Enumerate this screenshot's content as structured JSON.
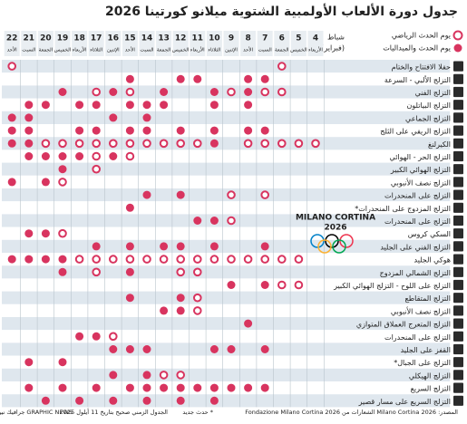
{
  "header": {
    "title": "جدول دورة الألعاب الأولمبية الشتوية ميلانو كورتينا 2026",
    "month": "شباط",
    "month_sub": "(فبراير)"
  },
  "legend": {
    "event": "يوم الحدث الرياضي",
    "medal": "يوم الحدث والميداليات"
  },
  "columns": {
    "days": [
      4,
      5,
      6,
      7,
      8,
      9,
      10,
      11,
      12,
      13,
      14,
      15,
      16,
      17,
      18,
      19,
      20,
      21,
      22
    ],
    "weekdays": [
      "الأربعاء",
      "الخميس",
      "الجمعة",
      "السبت",
      "الأحد",
      "الإثنين",
      "الثلاثاء",
      "الأربعاء",
      "الخميس",
      "الجمعة",
      "السبت",
      "الأحد",
      "الإثنين",
      "الثلاثاء",
      "الأربعاء",
      "الخميس",
      "الجمعة",
      "السبت",
      "الأحد"
    ]
  },
  "rows": [
    {
      "label": "حفلا الافتتاح والختام",
      "events": [
        6,
        22
      ]
    },
    {
      "label": "التزلج الألبي - السرعة",
      "medals": [
        7,
        8,
        11,
        12,
        15
      ]
    },
    {
      "label": "التزلج الفني",
      "events": [
        6,
        7,
        9,
        15,
        17
      ],
      "medals": [
        8,
        10,
        13,
        16,
        19
      ]
    },
    {
      "label": "التزلج البياتلون",
      "medals": [
        8,
        10,
        13,
        14,
        15,
        17,
        18,
        20,
        21
      ]
    },
    {
      "label": "التزلج الجماعي",
      "medals": [
        14,
        16,
        21,
        22
      ]
    },
    {
      "label": "التزلج الريفي على الثلج",
      "medals": [
        7,
        8,
        10,
        12,
        14,
        15,
        17,
        18,
        21,
        22
      ]
    },
    {
      "label": "الكيرلنغ",
      "events": [
        4,
        5,
        6,
        7,
        8,
        11,
        12,
        13,
        14,
        15,
        16,
        17,
        18,
        19,
        20
      ],
      "medals": [
        10,
        21,
        22
      ]
    },
    {
      "label": "التزلج الحر - الهوائي",
      "events": [
        15,
        17
      ],
      "medals": [
        16,
        18,
        19,
        20,
        21
      ]
    },
    {
      "label": "التزلج الهوائي الكبير",
      "events": [
        17
      ],
      "medals": [
        19
      ]
    },
    {
      "label": "التزلج نصف الأنبوبي",
      "events": [
        19
      ],
      "medals": [
        20,
        22
      ]
    },
    {
      "label": "التزلج على المنحدرات",
      "events": [
        7,
        9
      ],
      "medals": [
        12,
        14
      ]
    },
    {
      "label": "التزلج المزدوج على المنحدرات*",
      "medals": [
        15
      ]
    },
    {
      "label": "التزلج على المنحدرات",
      "events": [
        9
      ],
      "medals": [
        10,
        11
      ]
    },
    {
      "label": "السكي كروس",
      "events": [
        19
      ],
      "medals": [
        20,
        21
      ]
    },
    {
      "label": "التزلج الفني على الجليد",
      "medals": [
        7,
        10,
        12,
        13,
        15,
        17
      ]
    },
    {
      "label": "هوكي الجليد",
      "events": [
        5,
        6,
        7,
        8,
        9,
        10,
        11,
        12,
        13,
        14,
        15,
        16,
        17,
        18
      ],
      "medals": [
        19,
        20,
        21,
        22
      ]
    },
    {
      "label": "التزلج الشمالي المزدوج",
      "events": [
        11,
        12,
        17
      ],
      "medals": [
        15,
        19
      ]
    },
    {
      "label": "التزلج على اللوح - التزلج الهوائي الكبير",
      "events": [
        5,
        6
      ],
      "medals": [
        7,
        9
      ]
    },
    {
      "label": "التزلج المتقاطع",
      "events": [
        11
      ],
      "medals": [
        12,
        15
      ]
    },
    {
      "label": "التزلج نصف الأنبوبي",
      "events": [
        11
      ],
      "medals": [
        12,
        13
      ]
    },
    {
      "label": "التزلج المتعرج العملاق المتوازي",
      "medals": [
        8
      ]
    },
    {
      "label": "التزلج على المنحدرات",
      "events": [
        16
      ],
      "medals": [
        17,
        18
      ]
    },
    {
      "label": "القفز على الجليد",
      "medals": [
        7,
        9,
        10,
        14,
        15,
        16
      ]
    },
    {
      "label": "التزلج على الجبال*",
      "medals": [
        19,
        21
      ]
    },
    {
      "label": "التزلج الهيكلي",
      "events": [
        12,
        13
      ],
      "medals": [
        14,
        16
      ]
    },
    {
      "label": "التزلج السريع",
      "medals": [
        7,
        8,
        9,
        10,
        11,
        12,
        13,
        14,
        15,
        17,
        19,
        21
      ]
    },
    {
      "label": "التزلج السريع على مسار قصير",
      "medals": [
        10,
        12,
        14,
        16,
        18,
        20
      ]
    }
  ],
  "logo": {
    "name": "MILANO CORTINA",
    "year": "2026"
  },
  "footer": {
    "source": "المصدر: Milano Cortina 2026 الشعارات من Fondazione Milano Cortina 2026",
    "note": "* حدث جديد",
    "date": "الجدول الزمني صحيح بتاريخ 11 أيلول 2025",
    "credit": "GRAPHIC NEWS جرافيك نيوز"
  }
}
